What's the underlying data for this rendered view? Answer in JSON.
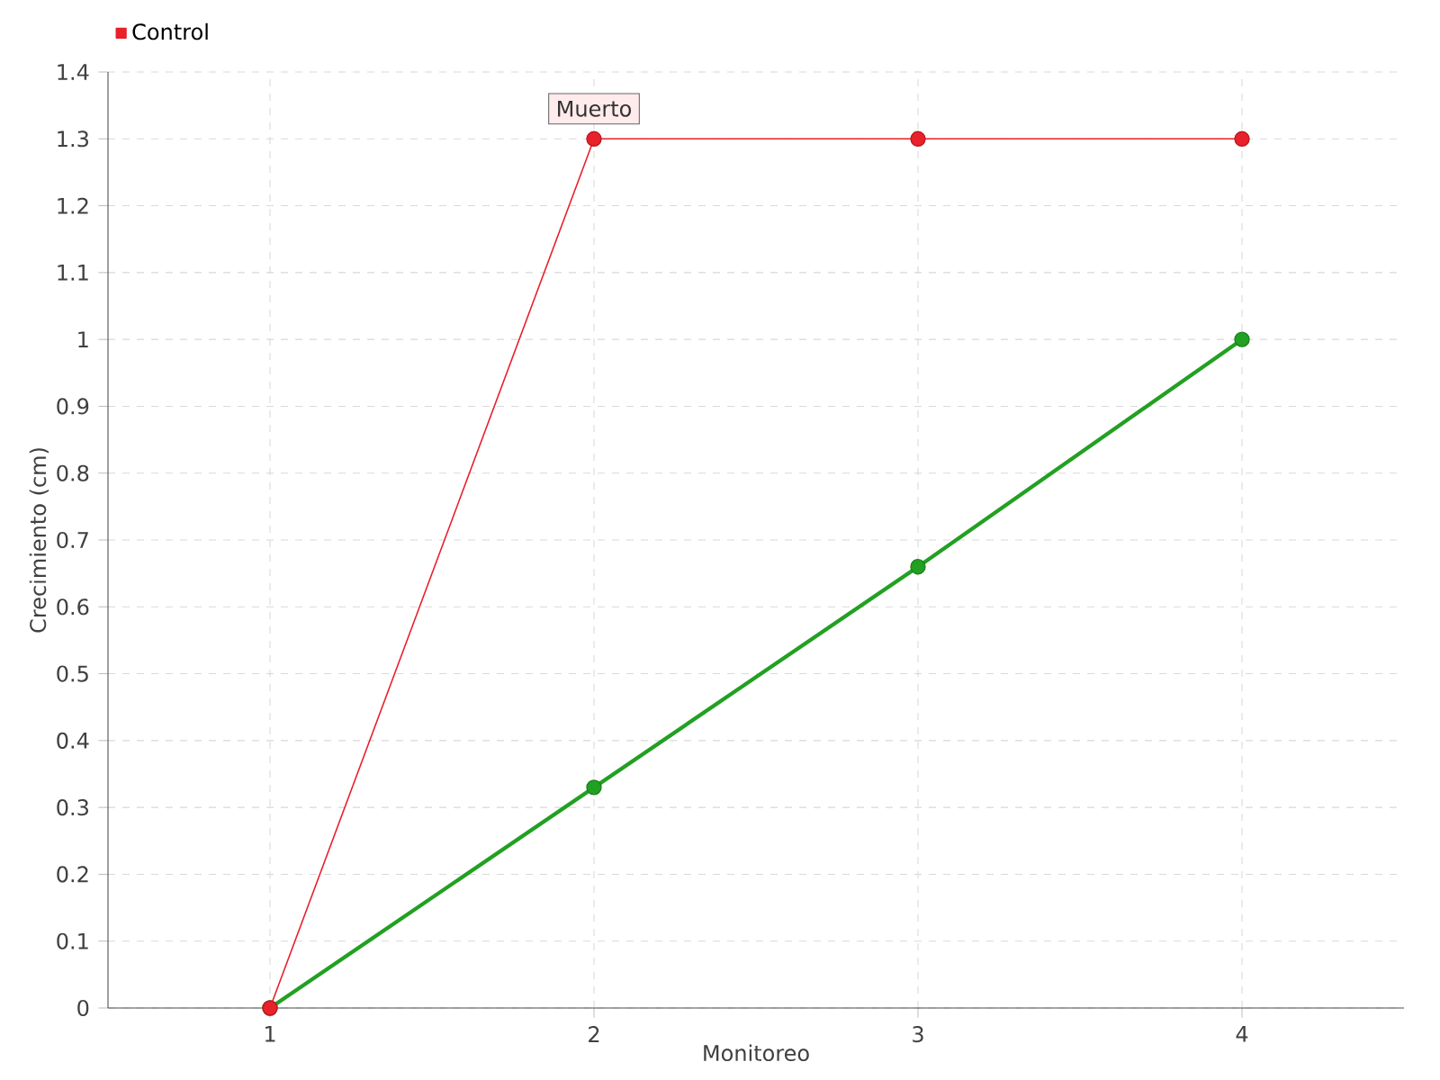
{
  "chart_data": {
    "type": "line",
    "xlabel": "Monitoreo",
    "ylabel": "Crecimiento (cm)",
    "categories": [
      "1",
      "2",
      "3",
      "4"
    ],
    "series": [
      {
        "color": "#22a022",
        "values": [
          0,
          0.33,
          0.66,
          1.0
        ]
      },
      {
        "name": "Control",
        "color": "#e8212b",
        "values": [
          0,
          1.3,
          1.3,
          1.3
        ]
      }
    ],
    "ylim": [
      0,
      1.4
    ],
    "yticks": [
      0,
      0.1,
      0.2,
      0.3,
      0.4,
      0.5,
      0.6,
      0.7,
      0.8,
      0.9,
      1,
      1.1,
      1.2,
      1.3,
      1.4
    ],
    "annotations": [
      {
        "text": "Muerto",
        "x": "2",
        "y": 1.3
      }
    ],
    "grid": true,
    "legend": "top left",
    "marker": "circle",
    "line_style": "solid"
  }
}
